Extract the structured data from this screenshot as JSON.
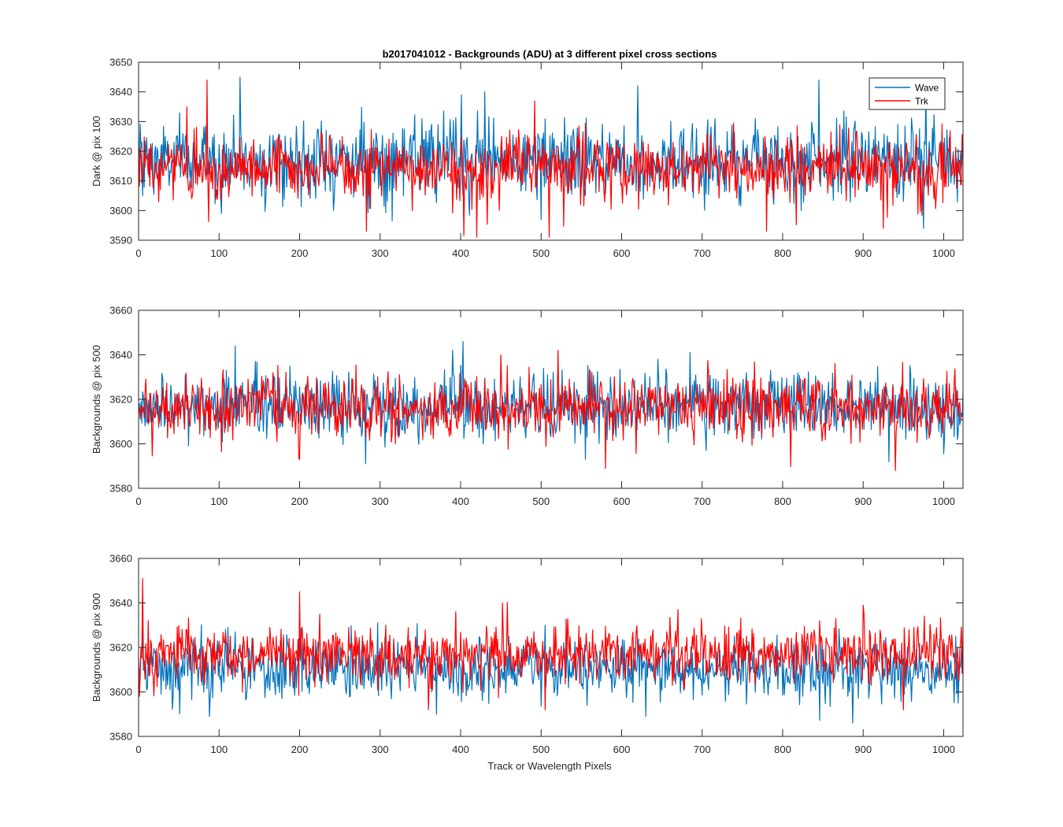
{
  "figure": {
    "title": "b2017041012 - Backgrounds (ADU) at 3 different pixel cross sections",
    "xlabel": "Track or Wavelength Pixels"
  },
  "legend": {
    "placement": "top-right",
    "entries": [
      {
        "name": "Wave",
        "color": "#0072bd"
      },
      {
        "name": "Trk",
        "color": "#ff0000"
      }
    ]
  },
  "chart_data": [
    {
      "type": "line",
      "ylabel": "Dark @ pix 100",
      "xlim": [
        0,
        1024
      ],
      "ylim": [
        3590,
        3650
      ],
      "xticks": [
        0,
        100,
        200,
        300,
        400,
        500,
        600,
        700,
        800,
        900,
        1000
      ],
      "yticks": [
        3590,
        3600,
        3610,
        3620,
        3630,
        3640,
        3650
      ],
      "grid": false,
      "series": [
        {
          "name": "Wave",
          "color": "#0072bd",
          "mean": 3617,
          "std": 6.5,
          "min": 3594,
          "max": 3645,
          "peaks": [
            [
              126,
              3645
            ],
            [
              430,
              3640
            ],
            [
              845,
              3644
            ],
            [
              978,
              3641
            ],
            [
              620,
              3642
            ],
            [
              401,
              3639
            ]
          ],
          "dips": [
            [
              5,
              3605
            ],
            [
              500,
              3597
            ],
            [
              975,
              3594
            ]
          ]
        },
        {
          "name": "Trk",
          "color": "#ff0000",
          "mean": 3614,
          "std": 5.5,
          "min": 3591,
          "max": 3644,
          "peaks": [
            [
              85,
              3644
            ],
            [
              60,
              3635
            ],
            [
              492,
              3637
            ]
          ],
          "dips": [
            [
              283,
              3593
            ],
            [
              420,
              3591
            ],
            [
              510,
              3591
            ],
            [
              780,
              3593
            ],
            [
              925,
              3594
            ]
          ]
        }
      ]
    },
    {
      "type": "line",
      "ylabel": "Backgrounds @ pix 500",
      "xlim": [
        0,
        1024
      ],
      "ylim": [
        3580,
        3660
      ],
      "xticks": [
        0,
        100,
        200,
        300,
        400,
        500,
        600,
        700,
        800,
        900,
        1000
      ],
      "yticks": [
        3580,
        3600,
        3620,
        3640,
        3660
      ],
      "grid": false,
      "series": [
        {
          "name": "Wave",
          "color": "#0072bd",
          "mean": 3617,
          "std": 7.5,
          "min": 3589,
          "max": 3646,
          "peaks": [
            [
              120,
              3644
            ],
            [
              403,
              3646
            ],
            [
              390,
              3642
            ],
            [
              645,
              3638
            ]
          ],
          "dips": [
            [
              282,
              3591
            ],
            [
              555,
              3593
            ],
            [
              932,
              3592
            ]
          ]
        },
        {
          "name": "Trk",
          "color": "#ff0000",
          "mean": 3616,
          "std": 7.0,
          "min": 3588,
          "max": 3642,
          "peaks": [
            [
              521,
              3642
            ],
            [
              865,
              3636
            ],
            [
              450,
              3640
            ]
          ],
          "dips": [
            [
              580,
              3589
            ],
            [
              940,
              3588
            ],
            [
              200,
              3593
            ]
          ]
        }
      ]
    },
    {
      "type": "line",
      "ylabel": "Backgrounds @ pix 900",
      "xlim": [
        0,
        1024
      ],
      "ylim": [
        3580,
        3660
      ],
      "xticks": [
        0,
        100,
        200,
        300,
        400,
        500,
        600,
        700,
        800,
        900,
        1000
      ],
      "yticks": [
        3580,
        3600,
        3620,
        3640,
        3660
      ],
      "grid": false,
      "series": [
        {
          "name": "Wave",
          "color": "#0072bd",
          "mean": 3610,
          "std": 7.0,
          "min": 3586,
          "max": 3632,
          "peaks": [
            [
              505,
              3630
            ]
          ],
          "dips": [
            [
              88,
              3589
            ],
            [
              630,
              3589
            ],
            [
              887,
              3586
            ],
            [
              370,
              3590
            ]
          ]
        },
        {
          "name": "Trk",
          "color": "#ff0000",
          "mean": 3617,
          "std": 6.5,
          "min": 3592,
          "max": 3651,
          "peaks": [
            [
              5,
              3651
            ],
            [
              200,
              3645
            ],
            [
              452,
              3640
            ],
            [
              900,
              3639
            ],
            [
              670,
              3637
            ]
          ],
          "dips": [
            [
              360,
              3592
            ],
            [
              505,
              3592
            ],
            [
              950,
              3592
            ]
          ]
        }
      ]
    }
  ]
}
